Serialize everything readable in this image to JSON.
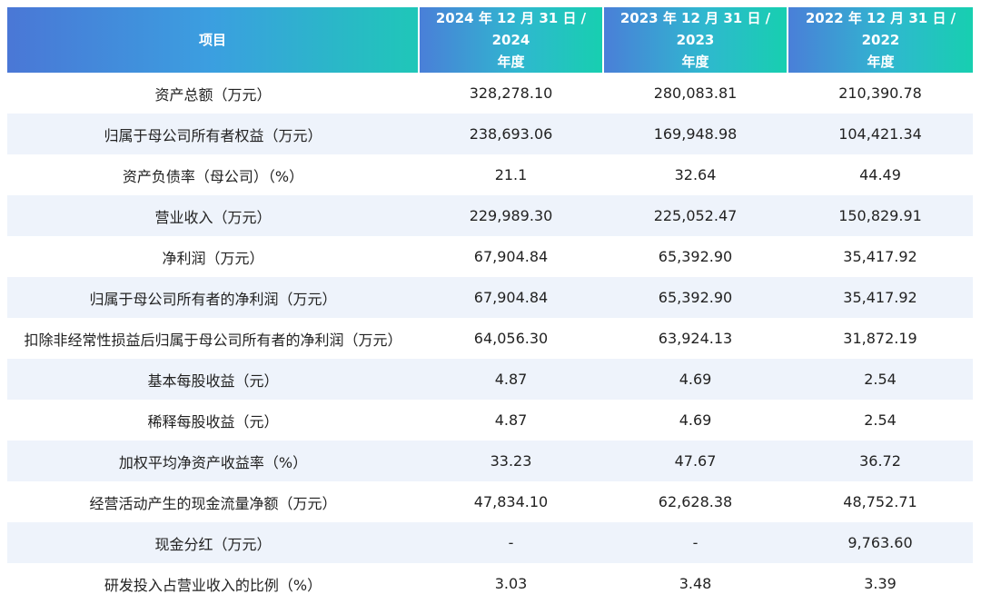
{
  "table": {
    "header": {
      "item": "项目",
      "years": [
        {
          "line1": "2024 年 12 月 31 日 / 2024",
          "line2": "年度"
        },
        {
          "line1": "2023 年 12 月 31 日 / 2023",
          "line2": "年度"
        },
        {
          "line1": "2022 年 12 月 31 日 / 2022",
          "line2": "年度"
        }
      ]
    },
    "rows": [
      {
        "label": "资产总额（万元）",
        "values": [
          "328,278.10",
          "280,083.81",
          "210,390.78"
        ]
      },
      {
        "label": "归属于母公司所有者权益（万元）",
        "values": [
          "238,693.06",
          "169,948.98",
          "104,421.34"
        ]
      },
      {
        "label": "资产负债率（母公司）（%）",
        "values": [
          "21.1",
          "32.64",
          "44.49"
        ]
      },
      {
        "label": "营业收入（万元）",
        "values": [
          "229,989.30",
          "225,052.47",
          "150,829.91"
        ]
      },
      {
        "label": "净利润（万元）",
        "values": [
          "67,904.84",
          "65,392.90",
          "35,417.92"
        ]
      },
      {
        "label": "归属于母公司所有者的净利润（万元）",
        "values": [
          "67,904.84",
          "65,392.90",
          "35,417.92"
        ]
      },
      {
        "label": "扣除非经常性损益后归属于母公司所有者的净利润（万元）",
        "values": [
          "64,056.30",
          "63,924.13",
          "31,872.19"
        ]
      },
      {
        "label": "基本每股收益（元）",
        "values": [
          "4.87",
          "4.69",
          "2.54"
        ]
      },
      {
        "label": "稀释每股收益（元）",
        "values": [
          "4.87",
          "4.69",
          "2.54"
        ]
      },
      {
        "label": "加权平均净资产收益率（%）",
        "values": [
          "33.23",
          "47.67",
          "36.72"
        ]
      },
      {
        "label": "经营活动产生的现金流量净额（万元）",
        "values": [
          "47,834.10",
          "62,628.38",
          "48,752.71"
        ]
      },
      {
        "label": "现金分红（万元）",
        "values": [
          "-",
          "-",
          "9,763.60"
        ]
      },
      {
        "label": "研发投入占营业收入的比例（%）",
        "values": [
          "3.03",
          "3.48",
          "3.39"
        ]
      }
    ]
  },
  "colors": {
    "header_gradient_start": "#4a77d6",
    "header_gradient_end": "#17cfb0",
    "alt_row_bg": "#eef3fb",
    "text": "#222222"
  }
}
